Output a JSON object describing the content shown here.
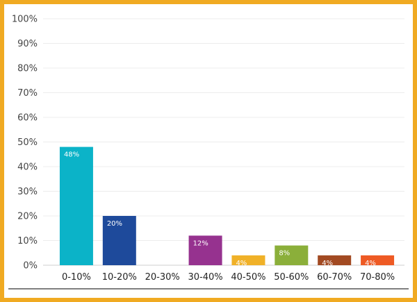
{
  "chart_data": {
    "type": "bar",
    "title": "",
    "xlabel": "",
    "ylabel": "",
    "categories": [
      "0-10%",
      "10-20%",
      "20-30%",
      "30-40%",
      "40-50%",
      "50-60%",
      "60-70%",
      "70-80%"
    ],
    "values": [
      48,
      20,
      0,
      12,
      4,
      8,
      4,
      4
    ],
    "data_labels": [
      "48%",
      "20%",
      "",
      "12%",
      "4%",
      "8%",
      "4%",
      "4%"
    ],
    "colors": [
      "#0BB3C8",
      "#1E4A9B",
      "#1E4A9B",
      "#96328F",
      "#F0B128",
      "#8BAF3A",
      "#A24A22",
      "#EE5A24"
    ],
    "ylim": [
      0,
      100
    ],
    "yticks": [
      "0%",
      "10%",
      "20%",
      "30%",
      "40%",
      "50%",
      "60%",
      "70%",
      "80%",
      "90%",
      "100%"
    ],
    "grid": true,
    "legend": "none"
  },
  "frame_color": "#F0AA22"
}
